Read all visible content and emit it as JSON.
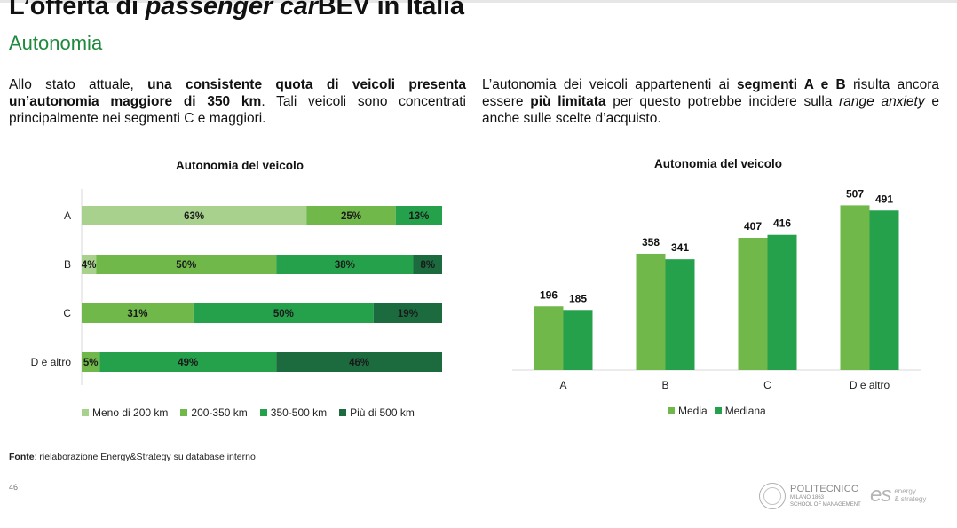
{
  "header": {
    "title_pre": "L’offerta di ",
    "title_em": "passenger car",
    "title_post": "BEV in Italia",
    "subtitle": "Autonomia"
  },
  "text_left": {
    "t1": "Allo stato attuale, ",
    "b1": "una consistente quota di veicoli presenta un’autonomia maggiore di 350 km",
    "t2": ". Tali veicoli sono concentrati principalmente nei segmenti C e maggiori."
  },
  "text_right": {
    "t1": "L’autonomia dei veicoli appartenenti ai ",
    "b1": "segmenti A e B",
    "t2": " risulta ancora essere ",
    "b2": "più limitata",
    "t3": " per questo potrebbe incidere sulla ",
    "i1": "range anxiety",
    "t4": " e anche sulle scelte d’acquisto."
  },
  "chart_data": [
    {
      "type": "bar",
      "orientation": "horizontal-stacked-100",
      "title": "Autonomia del veicolo",
      "categories": [
        "A",
        "B",
        "C",
        "D e altro"
      ],
      "series": [
        {
          "name": "Meno di 200 km",
          "color": "#a9d18e",
          "values": [
            63,
            4,
            0,
            0
          ]
        },
        {
          "name": "200-350 km",
          "color": "#70b84a",
          "values": [
            25,
            50,
            31,
            5
          ]
        },
        {
          "name": "350-500 km",
          "color": "#25a04b",
          "values": [
            13,
            38,
            50,
            49
          ]
        },
        {
          "name": "Più di 500 km",
          "color": "#1b6b3f",
          "values": [
            0,
            8,
            19,
            46
          ]
        }
      ],
      "legend_position": "bottom"
    },
    {
      "type": "bar",
      "orientation": "vertical-grouped",
      "title": "Autonomia del veicolo",
      "categories": [
        "A",
        "B",
        "C",
        "D e altro"
      ],
      "series": [
        {
          "name": "Media",
          "color": "#70b84a",
          "values": [
            196,
            358,
            407,
            507
          ]
        },
        {
          "name": "Mediana",
          "color": "#25a04b",
          "values": [
            185,
            341,
            416,
            491
          ]
        }
      ],
      "ylim": [
        0,
        560
      ],
      "legend_position": "bottom"
    }
  ],
  "footer": {
    "source_label": "Fonte",
    "source_text": ": rielaborazione Energy&Strategy su database interno",
    "page_number": "46",
    "logo_poli": "POLITECNICO",
    "logo_poli_sub1": "MILANO 1863",
    "logo_poli_sub2": "SCHOOL OF MANAGEMENT",
    "logo_es": "es",
    "logo_es_l1": "energy",
    "logo_es_l2": "& strategy"
  }
}
